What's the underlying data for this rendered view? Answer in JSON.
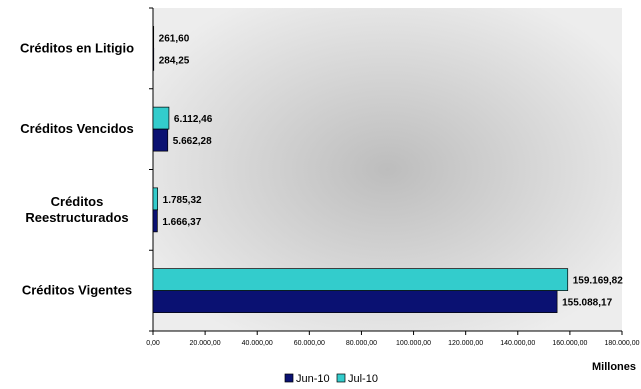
{
  "chart_data": {
    "type": "bar",
    "orientation": "horizontal",
    "categories": [
      [
        "Créditos en Litigio"
      ],
      [
        "Créditos Vencidos"
      ],
      [
        "Créditos",
        "Reestructurados"
      ],
      [
        "Créditos Vigentes"
      ]
    ],
    "series": [
      {
        "name": "Jun-10",
        "color": "#0a1172",
        "values": [
          284.25,
          5662.28,
          1666.37,
          155088.17
        ],
        "labels": [
          "284,25",
          "5.662,28",
          "1.666,37",
          "155.088,17"
        ]
      },
      {
        "name": "Jul-10",
        "color": "#33cccc",
        "values": [
          261.6,
          6112.46,
          1785.32,
          159169.82
        ],
        "labels": [
          "261,60",
          "6.112,46",
          "1.785,32",
          "159.169,82"
        ]
      }
    ],
    "xlim": [
      0,
      180000
    ],
    "x_ticks": [
      0,
      20000,
      40000,
      60000,
      80000,
      100000,
      120000,
      140000,
      160000,
      180000
    ],
    "x_tick_labels": [
      "0,00",
      "20.000,00",
      "40.000,00",
      "60.000,00",
      "80.000,00",
      "100.000,00",
      "120.000,00",
      "140.000,00",
      "160.000,00",
      "180.000,00"
    ],
    "xlabel": "Millones",
    "legend": "bottom",
    "grid": false
  }
}
